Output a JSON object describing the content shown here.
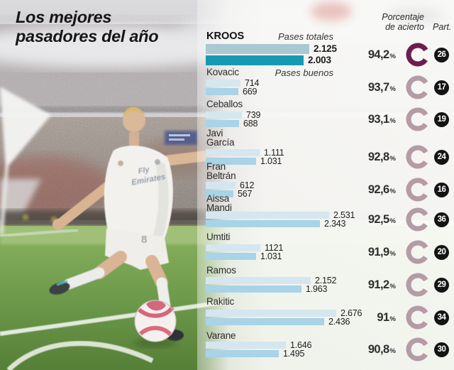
{
  "title": {
    "line1": "Los mejores",
    "line2": "pasadores del año"
  },
  "photo": {
    "jersey_sponsor_line1": "Fly",
    "jersey_sponsor_line2": "Emirates",
    "shorts_number": "8"
  },
  "chart_data": {
    "type": "bar",
    "title": "Los mejores pasadores del año",
    "orientation": "horizontal",
    "series_labels": {
      "total": "Pases totales",
      "good": "Pases buenos"
    },
    "column_headers": {
      "accuracy_line1": "Porcentaje",
      "accuracy_line2": "de acierto",
      "participation": "Part."
    },
    "percent_suffix": "%",
    "x_max": 2676,
    "players": [
      {
        "name_lines": [
          "KROOS"
        ],
        "total": 2125,
        "total_label": "2.125",
        "good": 2003,
        "good_label": "2.003",
        "accuracy": 94.2,
        "accuracy_label": "94,2",
        "participation": "26",
        "highlight": true
      },
      {
        "name_lines": [
          "Kovacic"
        ],
        "total": 714,
        "total_label": "714",
        "good": 669,
        "good_label": "669",
        "accuracy": 93.7,
        "accuracy_label": "93,7",
        "participation": "17"
      },
      {
        "name_lines": [
          "Ceballos"
        ],
        "total": 739,
        "total_label": "739",
        "good": 688,
        "good_label": "688",
        "accuracy": 93.1,
        "accuracy_label": "93,1",
        "participation": "19"
      },
      {
        "name_lines": [
          "Javi",
          "García"
        ],
        "total": 1111,
        "total_label": "1.111",
        "good": 1031,
        "good_label": "1.031",
        "accuracy": 92.8,
        "accuracy_label": "92,8",
        "participation": "24"
      },
      {
        "name_lines": [
          "Fran",
          "Beltrán"
        ],
        "total": 612,
        "total_label": "612",
        "good": 567,
        "good_label": "567",
        "accuracy": 92.6,
        "accuracy_label": "92,6",
        "participation": "16"
      },
      {
        "name_lines": [
          "Aissa",
          "Mandi"
        ],
        "total": 2531,
        "total_label": "2.531",
        "good": 2343,
        "good_label": "2.343",
        "accuracy": 92.5,
        "accuracy_label": "92,5",
        "participation": "36"
      },
      {
        "name_lines": [
          "Umtiti"
        ],
        "total": 1121,
        "total_label": "1121",
        "good": 1031,
        "good_label": "1.031",
        "accuracy": 91.9,
        "accuracy_label": "91,9",
        "participation": "20"
      },
      {
        "name_lines": [
          "Ramos"
        ],
        "total": 2152,
        "total_label": "2.152",
        "good": 1963,
        "good_label": "1.963",
        "accuracy": 91.2,
        "accuracy_label": "91,2",
        "participation": "29"
      },
      {
        "name_lines": [
          "Rakitic"
        ],
        "total": 2676,
        "total_label": "2.676",
        "good": 2436,
        "good_label": "2.436",
        "accuracy": 91.0,
        "accuracy_label": "91",
        "participation": "34"
      },
      {
        "name_lines": [
          "Varane"
        ],
        "total": 1646,
        "total_label": "1.646",
        "good": 1495,
        "good_label": "1.495",
        "accuracy": 90.8,
        "accuracy_label": "90,8",
        "participation": "30"
      }
    ],
    "colors": {
      "bar_total_highlight": "#a9c8d2",
      "bar_good_highlight": "#169ab4",
      "bar_total": "#d5e6ee",
      "bar_good": "#a9d3e6",
      "donut_highlight": "#6e1c4e",
      "donut": "#b49ba5",
      "badge_bg": "#141414",
      "badge_text": "#ffffff"
    }
  }
}
